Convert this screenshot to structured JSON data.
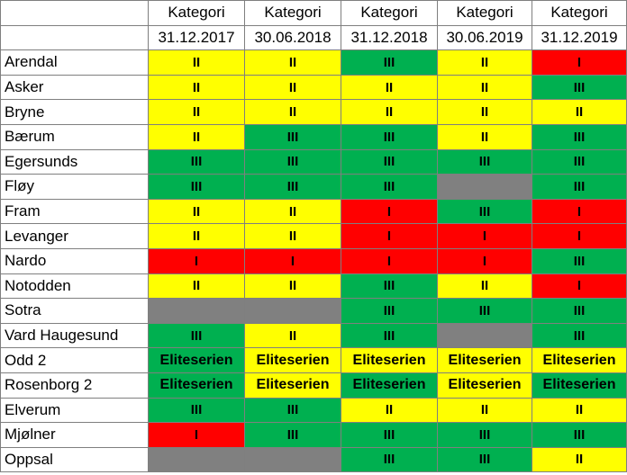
{
  "colors": {
    "yellow": "#ffff00",
    "green": "#00b050",
    "red": "#ff0000",
    "gray": "#808080"
  },
  "header": {
    "category_label": "Kategori",
    "dates": [
      "31.12.2017",
      "30.06.2018",
      "31.12.2018",
      "30.06.2019",
      "31.12.2019"
    ]
  },
  "rows": [
    {
      "name": "Arendal",
      "cells": [
        {
          "value": "II",
          "color": "yellow"
        },
        {
          "value": "II",
          "color": "yellow"
        },
        {
          "value": "III",
          "color": "green"
        },
        {
          "value": "II",
          "color": "yellow"
        },
        {
          "value": "I",
          "color": "red"
        }
      ]
    },
    {
      "name": "Asker",
      "cells": [
        {
          "value": "II",
          "color": "yellow"
        },
        {
          "value": "II",
          "color": "yellow"
        },
        {
          "value": "II",
          "color": "yellow"
        },
        {
          "value": "II",
          "color": "yellow"
        },
        {
          "value": "III",
          "color": "green"
        }
      ]
    },
    {
      "name": "Bryne",
      "cells": [
        {
          "value": "II",
          "color": "yellow"
        },
        {
          "value": "II",
          "color": "yellow"
        },
        {
          "value": "II",
          "color": "yellow"
        },
        {
          "value": "II",
          "color": "yellow"
        },
        {
          "value": "II",
          "color": "yellow"
        }
      ]
    },
    {
      "name": "Bærum",
      "cells": [
        {
          "value": "II",
          "color": "yellow"
        },
        {
          "value": "III",
          "color": "green"
        },
        {
          "value": "III",
          "color": "green"
        },
        {
          "value": "II",
          "color": "yellow"
        },
        {
          "value": "III",
          "color": "green"
        }
      ]
    },
    {
      "name": "Egersunds",
      "cells": [
        {
          "value": "III",
          "color": "green"
        },
        {
          "value": "III",
          "color": "green"
        },
        {
          "value": "III",
          "color": "green"
        },
        {
          "value": "III",
          "color": "green"
        },
        {
          "value": "III",
          "color": "green"
        }
      ]
    },
    {
      "name": "Fløy",
      "cells": [
        {
          "value": "III",
          "color": "green"
        },
        {
          "value": "III",
          "color": "green"
        },
        {
          "value": "III",
          "color": "green"
        },
        {
          "value": "",
          "color": "gray"
        },
        {
          "value": "III",
          "color": "green"
        }
      ]
    },
    {
      "name": "Fram",
      "cells": [
        {
          "value": "II",
          "color": "yellow"
        },
        {
          "value": "II",
          "color": "yellow"
        },
        {
          "value": "I",
          "color": "red"
        },
        {
          "value": "III",
          "color": "green"
        },
        {
          "value": "I",
          "color": "red"
        }
      ]
    },
    {
      "name": "Levanger",
      "cells": [
        {
          "value": "II",
          "color": "yellow"
        },
        {
          "value": "II",
          "color": "yellow"
        },
        {
          "value": "I",
          "color": "red"
        },
        {
          "value": "I",
          "color": "red"
        },
        {
          "value": "I",
          "color": "red"
        }
      ]
    },
    {
      "name": "Nardo",
      "cells": [
        {
          "value": "I",
          "color": "red"
        },
        {
          "value": "I",
          "color": "red"
        },
        {
          "value": "I",
          "color": "red"
        },
        {
          "value": "I",
          "color": "red"
        },
        {
          "value": "III",
          "color": "green"
        }
      ]
    },
    {
      "name": "Notodden",
      "cells": [
        {
          "value": "II",
          "color": "yellow"
        },
        {
          "value": "II",
          "color": "yellow"
        },
        {
          "value": "III",
          "color": "green"
        },
        {
          "value": "II",
          "color": "yellow"
        },
        {
          "value": "I",
          "color": "red"
        }
      ]
    },
    {
      "name": "Sotra",
      "cells": [
        {
          "value": "",
          "color": "gray"
        },
        {
          "value": "",
          "color": "gray"
        },
        {
          "value": "III",
          "color": "green"
        },
        {
          "value": "III",
          "color": "green"
        },
        {
          "value": "III",
          "color": "green"
        }
      ]
    },
    {
      "name": "Vard Haugesund",
      "cells": [
        {
          "value": "III",
          "color": "green"
        },
        {
          "value": "II",
          "color": "yellow"
        },
        {
          "value": "III",
          "color": "green"
        },
        {
          "value": "",
          "color": "gray"
        },
        {
          "value": "III",
          "color": "green"
        }
      ]
    },
    {
      "name": "Odd 2",
      "cells": [
        {
          "value": "Eliteserien",
          "color": "green"
        },
        {
          "value": "Eliteserien",
          "color": "yellow"
        },
        {
          "value": "Eliteserien",
          "color": "yellow"
        },
        {
          "value": "Eliteserien",
          "color": "yellow"
        },
        {
          "value": "Eliteserien",
          "color": "yellow"
        }
      ]
    },
    {
      "name": "Rosenborg 2",
      "cells": [
        {
          "value": "Eliteserien",
          "color": "green"
        },
        {
          "value": "Eliteserien",
          "color": "yellow"
        },
        {
          "value": "Eliteserien",
          "color": "green"
        },
        {
          "value": "Eliteserien",
          "color": "yellow"
        },
        {
          "value": "Eliteserien",
          "color": "green"
        }
      ]
    },
    {
      "name": "Elverum",
      "cells": [
        {
          "value": "III",
          "color": "green"
        },
        {
          "value": "III",
          "color": "green"
        },
        {
          "value": "II",
          "color": "yellow"
        },
        {
          "value": "II",
          "color": "yellow"
        },
        {
          "value": "II",
          "color": "yellow"
        }
      ]
    },
    {
      "name": "Mjølner",
      "cells": [
        {
          "value": "I",
          "color": "red"
        },
        {
          "value": "III",
          "color": "green"
        },
        {
          "value": "III",
          "color": "green"
        },
        {
          "value": "III",
          "color": "green"
        },
        {
          "value": "III",
          "color": "green"
        }
      ]
    },
    {
      "name": "Oppsal",
      "cells": [
        {
          "value": "",
          "color": "gray"
        },
        {
          "value": "",
          "color": "gray"
        },
        {
          "value": "III",
          "color": "green"
        },
        {
          "value": "III",
          "color": "green"
        },
        {
          "value": "II",
          "color": "yellow"
        }
      ]
    }
  ]
}
